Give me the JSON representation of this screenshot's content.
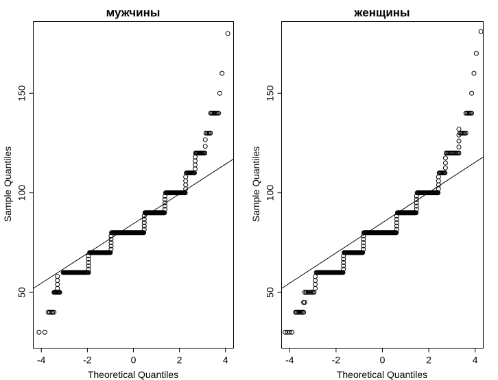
{
  "chart_data": [
    {
      "type": "scatter",
      "title": "мужчины",
      "xlabel": "Theoretical Quantiles",
      "ylabel": "Sample Quantiles",
      "xlim": [
        -4.35,
        4.35
      ],
      "ylim": [
        22,
        186
      ],
      "xticks": [
        -4,
        -2,
        0,
        2,
        4
      ],
      "yticks": [
        50,
        100,
        150
      ],
      "reference_line": {
        "x": [
          -4.35,
          4.35
        ],
        "y": [
          52,
          117
        ]
      },
      "steps": [
        {
          "y": 30,
          "x_from": -4.1,
          "x_to": -3.85,
          "n": 2
        },
        {
          "y": 40,
          "x_from": -3.7,
          "x_to": -3.45,
          "n": 5
        },
        {
          "y": 50,
          "x_from": -3.45,
          "x_to": -3.2,
          "n": 9
        },
        {
          "y": 60,
          "x_from": -3.05,
          "x_to": -1.95,
          "n": 40
        },
        {
          "y": 70,
          "x_from": -1.9,
          "x_to": -1.0,
          "n": 38
        },
        {
          "y": 80,
          "x_from": -0.95,
          "x_to": 0.45,
          "n": 56
        },
        {
          "y": 90,
          "x_from": 0.5,
          "x_to": 1.35,
          "n": 34
        },
        {
          "y": 100,
          "x_from": 1.4,
          "x_to": 2.25,
          "n": 32
        },
        {
          "y": 110,
          "x_from": 2.3,
          "x_to": 2.65,
          "n": 12
        },
        {
          "y": 120,
          "x_from": 2.7,
          "x_to": 3.1,
          "n": 12
        },
        {
          "y": 130,
          "x_from": 3.15,
          "x_to": 3.35,
          "n": 5
        },
        {
          "y": 140,
          "x_from": 3.35,
          "x_to": 3.7,
          "n": 8
        }
      ],
      "rises": [
        {
          "x": -3.3,
          "y_from": 50,
          "y_to": 60,
          "n": 4
        },
        {
          "x": -1.95,
          "y_from": 60,
          "y_to": 70,
          "n": 5
        },
        {
          "x": -0.97,
          "y_from": 70,
          "y_to": 80,
          "n": 5
        },
        {
          "x": 0.47,
          "y_from": 80,
          "y_to": 90,
          "n": 5
        },
        {
          "x": 1.37,
          "y_from": 90,
          "y_to": 100,
          "n": 5
        },
        {
          "x": 2.27,
          "y_from": 100,
          "y_to": 110,
          "n": 4
        },
        {
          "x": 2.68,
          "y_from": 110,
          "y_to": 120,
          "n": 4
        },
        {
          "x": 3.12,
          "y_from": 120,
          "y_to": 130,
          "n": 2
        }
      ],
      "singles": [
        {
          "x": 3.75,
          "y": 150
        },
        {
          "x": 3.85,
          "y": 160
        },
        {
          "x": 4.1,
          "y": 180
        }
      ]
    },
    {
      "type": "scatter",
      "title": "женщины",
      "xlabel": "Theoretical Quantiles",
      "ylabel": "Sample Quantiles",
      "xlim": [
        -4.35,
        4.35
      ],
      "ylim": [
        22,
        186
      ],
      "xticks": [
        -4,
        -2,
        0,
        2,
        4
      ],
      "yticks": [
        50,
        100,
        150
      ],
      "reference_line": {
        "x": [
          -4.35,
          4.35
        ],
        "y": [
          52,
          118
        ]
      },
      "steps": [
        {
          "y": 30,
          "x_from": -4.2,
          "x_to": -3.9,
          "n": 4
        },
        {
          "y": 40,
          "x_from": -3.75,
          "x_to": -3.4,
          "n": 8
        },
        {
          "y": 45,
          "x_from": -3.4,
          "x_to": -3.35,
          "n": 2
        },
        {
          "y": 50,
          "x_from": -3.35,
          "x_to": -2.95,
          "n": 9
        },
        {
          "y": 60,
          "x_from": -2.85,
          "x_to": -1.7,
          "n": 40
        },
        {
          "y": 70,
          "x_from": -1.65,
          "x_to": -0.85,
          "n": 32
        },
        {
          "y": 80,
          "x_from": -0.8,
          "x_to": 0.6,
          "n": 56
        },
        {
          "y": 90,
          "x_from": 0.65,
          "x_to": 1.45,
          "n": 32
        },
        {
          "y": 100,
          "x_from": 1.5,
          "x_to": 2.4,
          "n": 32
        },
        {
          "y": 110,
          "x_from": 2.45,
          "x_to": 2.7,
          "n": 8
        },
        {
          "y": 120,
          "x_from": 2.75,
          "x_to": 3.3,
          "n": 14
        },
        {
          "y": 130,
          "x_from": 3.35,
          "x_to": 3.6,
          "n": 6
        },
        {
          "y": 140,
          "x_from": 3.6,
          "x_to": 3.85,
          "n": 6
        }
      ],
      "rises": [
        {
          "x": -2.9,
          "y_from": 50,
          "y_to": 60,
          "n": 4
        },
        {
          "x": -1.68,
          "y_from": 60,
          "y_to": 70,
          "n": 5
        },
        {
          "x": -0.82,
          "y_from": 70,
          "y_to": 80,
          "n": 5
        },
        {
          "x": 0.62,
          "y_from": 80,
          "y_to": 90,
          "n": 5
        },
        {
          "x": 1.47,
          "y_from": 90,
          "y_to": 100,
          "n": 5
        },
        {
          "x": 2.42,
          "y_from": 100,
          "y_to": 110,
          "n": 4
        },
        {
          "x": 2.72,
          "y_from": 110,
          "y_to": 120,
          "n": 3
        },
        {
          "x": 3.3,
          "y_from": 120,
          "y_to": 135,
          "n": 4
        }
      ],
      "singles": [
        {
          "x": 3.85,
          "y": 150
        },
        {
          "x": 3.95,
          "y": 160
        },
        {
          "x": 4.05,
          "y": 170
        },
        {
          "x": 4.25,
          "y": 181
        }
      ]
    }
  ]
}
